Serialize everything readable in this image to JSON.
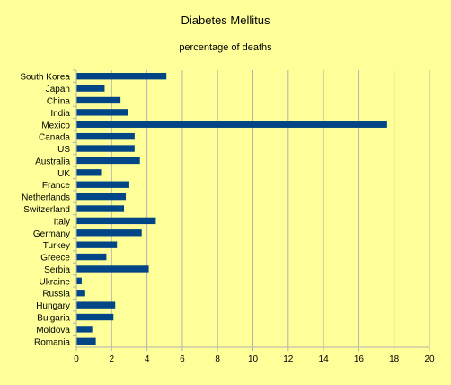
{
  "chart_data": {
    "type": "bar",
    "orientation": "horizontal",
    "title": "Diabetes Mellitus",
    "subtitle": "percentage of deaths",
    "xlabel": "",
    "ylabel": "",
    "xlim": [
      0,
      20
    ],
    "x_ticks": [
      0,
      2,
      4,
      6,
      8,
      10,
      12,
      14,
      16,
      18,
      20
    ],
    "grid": true,
    "legend": "none",
    "categories": [
      "South Korea",
      "Japan",
      "China",
      "India",
      "Mexico",
      "Canada",
      "US",
      "Australia",
      "UK",
      "France",
      "Netherlands",
      "Switzerland",
      "Italy",
      "Germany",
      "Turkey",
      "Greece",
      "Serbia",
      "Ukraine",
      "Russia",
      "Hungary",
      "Bulgaria",
      "Moldova",
      "Romania"
    ],
    "values": [
      5.1,
      1.6,
      2.5,
      2.9,
      17.6,
      3.3,
      3.3,
      3.6,
      1.4,
      3.0,
      2.8,
      2.7,
      4.5,
      3.7,
      2.3,
      1.7,
      4.1,
      0.3,
      0.5,
      2.2,
      2.1,
      0.9,
      1.1
    ],
    "colors": {
      "background": "#ffff99",
      "bar": "#004586",
      "grid": "#b3b3b3",
      "axis": "#b3b3b3"
    }
  }
}
